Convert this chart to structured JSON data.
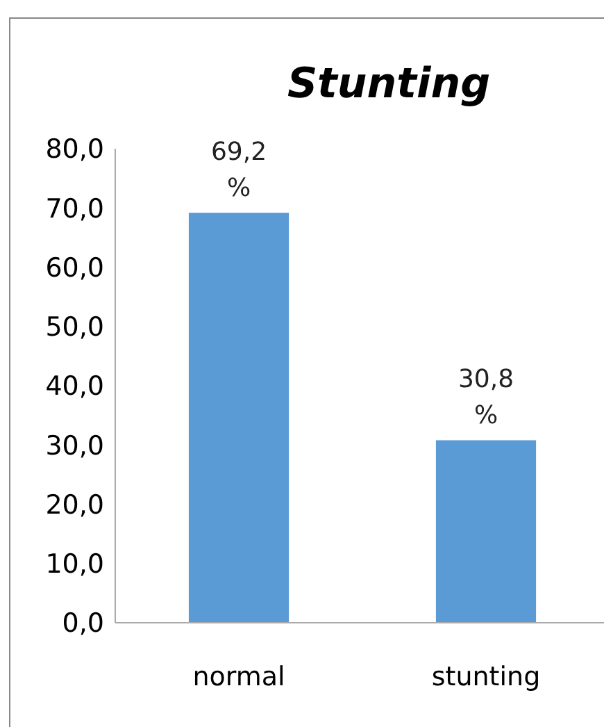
{
  "chart_data": {
    "type": "bar",
    "title": "Stunting",
    "categories": [
      "normal",
      "stunting"
    ],
    "values": [
      69.2,
      30.8
    ],
    "color": "#5b9bd5",
    "value_labels": [
      "69,2 %",
      "30,8 %"
    ],
    "ylim": [
      0,
      80
    ],
    "yticks": [
      {
        "value": 0,
        "label": "0,0"
      },
      {
        "value": 10,
        "label": "10,0"
      },
      {
        "value": 20,
        "label": "20,0"
      },
      {
        "value": 30,
        "label": "30,0"
      },
      {
        "value": 40,
        "label": "40,0"
      },
      {
        "value": 50,
        "label": "50,0"
      },
      {
        "value": 60,
        "label": "60,0"
      },
      {
        "value": 70,
        "label": "70,0"
      },
      {
        "value": 80,
        "label": "80,0"
      }
    ],
    "grid": false
  }
}
